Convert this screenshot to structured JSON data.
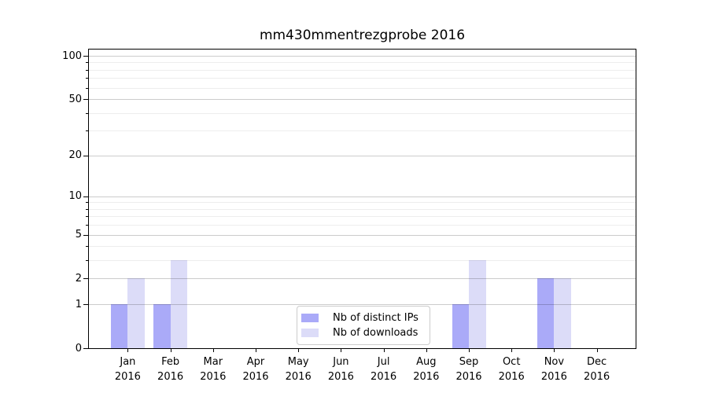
{
  "title": "mm430mmentrezgprobe 2016",
  "chart_data": {
    "type": "bar",
    "categories": [
      "Jan 2016",
      "Feb 2016",
      "Mar 2016",
      "Apr 2016",
      "May 2016",
      "Jun 2016",
      "Jul 2016",
      "Aug 2016",
      "Sep 2016",
      "Oct 2016",
      "Nov 2016",
      "Dec 2016"
    ],
    "series": [
      {
        "name": "Nb of distinct IPs",
        "color": "#aaaaf8",
        "values": [
          1,
          1,
          0,
          0,
          0,
          0,
          0,
          0,
          1,
          0,
          2,
          0
        ]
      },
      {
        "name": "Nb of downloads",
        "color": "#dcdcf8",
        "values": [
          2,
          3,
          0,
          0,
          0,
          0,
          0,
          0,
          3,
          0,
          2,
          0
        ]
      }
    ],
    "title": "mm430mmentrezgprobe 2016",
    "xlabel": "",
    "ylabel": "",
    "yscale": "log1p",
    "ylim": [
      0,
      112
    ],
    "yticks_major": [
      0,
      1,
      2,
      5,
      10,
      20,
      50,
      100
    ],
    "yticks_minor": [
      3,
      4,
      6,
      7,
      8,
      9,
      30,
      40,
      60,
      70,
      80,
      90
    ],
    "grid": "horizontal-major-and-minor",
    "legend_position": "lower center"
  },
  "colors": {
    "bar_distinct_ips": "#aaaaf8",
    "bar_downloads": "#dcdcf8",
    "grid_major": "rgba(0,0,0,0.20)",
    "grid_minor": "rgba(0,0,0,0.07)",
    "spine": "#000000",
    "legend_border": "#cccccc",
    "background": "#ffffff",
    "text": "#000000"
  }
}
